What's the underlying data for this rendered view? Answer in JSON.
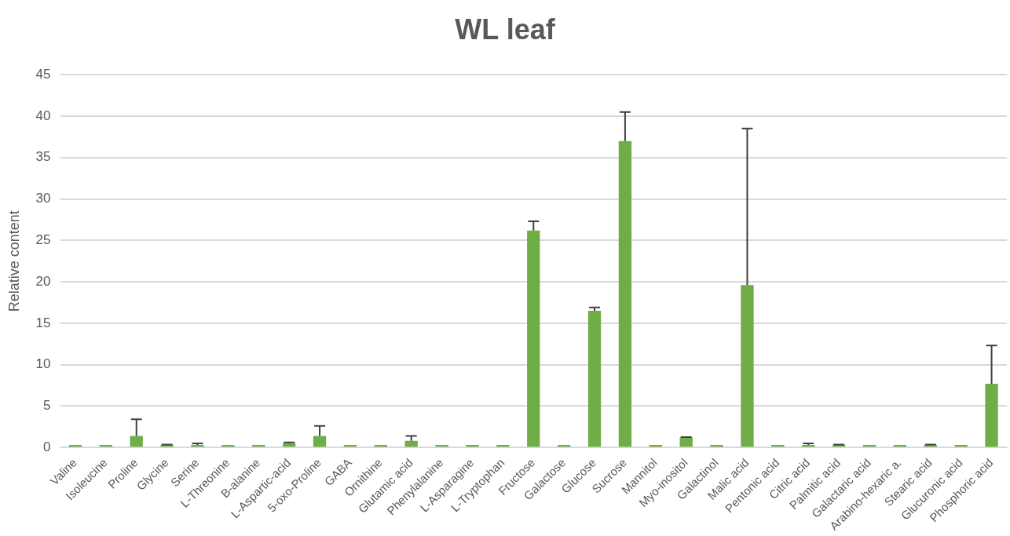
{
  "chart_data": {
    "type": "bar",
    "title": "WL leaf",
    "ylabel": "Relative content",
    "categories": [
      "Valine",
      "Isoleucine",
      "Proline",
      "Glycine",
      "Serine",
      "L-Threonine",
      "B-alanine",
      "L-Aspartic-acid",
      "5-oxo-Proline",
      "GABA",
      "Ornithine",
      "Glutamic acid",
      "Phenylalanine",
      "L-Asparagine",
      "L-Tryptophan",
      "Fructose",
      "Galactose",
      "Glucose",
      "Sucrose",
      "Mannitol",
      "Myo-inositol",
      "Galactinol",
      "Malic acid",
      "Pentonic acid",
      "Citric acid",
      "Palmitic acid",
      "Galactaric acid",
      "Arabino-hexaric a.",
      "Stearic acid",
      "Glucuronic acid",
      "Phosphoric acid"
    ],
    "values": [
      0.3,
      0.3,
      1.4,
      0.3,
      0.3,
      0.3,
      0.3,
      0.5,
      1.4,
      0.3,
      0.3,
      0.8,
      0.3,
      0.3,
      0.3,
      26.2,
      0.3,
      16.5,
      37,
      0.3,
      1.2,
      0.3,
      19.6,
      0.3,
      0.3,
      0.3,
      0.3,
      0.3,
      0.3,
      0.3,
      7.7
    ],
    "errors": [
      null,
      null,
      [
        1.4,
        3.4
      ],
      [
        0.3,
        0.35
      ],
      [
        0.3,
        0.5
      ],
      null,
      null,
      [
        0.5,
        0.6
      ],
      [
        1.4,
        2.6
      ],
      null,
      null,
      [
        0.8,
        1.4
      ],
      null,
      null,
      null,
      [
        26.2,
        27.3
      ],
      null,
      [
        16.5,
        16.9
      ],
      [
        37,
        40.5
      ],
      null,
      [
        1.2,
        1.25
      ],
      null,
      [
        19.6,
        38.5
      ],
      null,
      [
        0.3,
        0.5
      ],
      [
        0.3,
        0.35
      ],
      null,
      null,
      [
        0.3,
        0.35
      ],
      null,
      [
        7.7,
        12.3
      ]
    ],
    "color": "#70ad47",
    "ylim": [
      0,
      45
    ],
    "yticks": [
      0,
      5,
      10,
      15,
      20,
      25,
      30,
      35,
      40,
      45
    ],
    "grid": "y",
    "legend": false
  }
}
